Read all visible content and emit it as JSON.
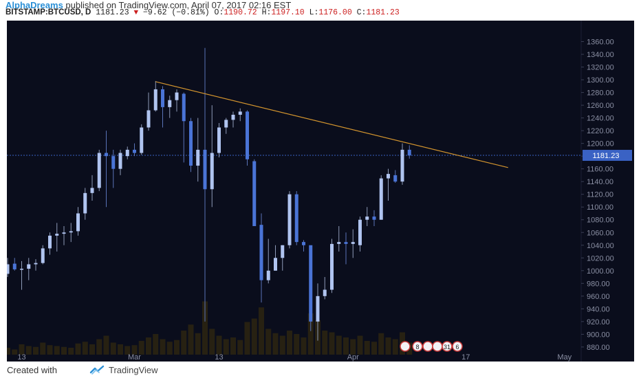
{
  "header": {
    "author": "AlphaDreams",
    "published_text": " published on TradingView.com, April 07, 2017 02:16 EST",
    "symbol": "BITSTAMP:BTCUSD, D",
    "last": "1181.23",
    "change": "−9.62 (−0.81%)",
    "open_label": "O:",
    "open_value": "1190.72",
    "high_label": "H:",
    "high_value": "1197.10",
    "low_label": "L:",
    "low_value": "1176.00",
    "close_label": "C:",
    "close_value": "1181.23"
  },
  "footer": {
    "created_with": "Created with",
    "brand": "TradingView"
  },
  "colors": {
    "background": "#0a0d1c",
    "bull": "#b0c4f0",
    "bear": "#4a74d6",
    "trendline": "#d4952e",
    "price_line": "#3a62c4",
    "axis_text": "#8a8fa3",
    "volume": "#2a2412"
  },
  "chart_data": {
    "type": "candlestick",
    "title": "BITSTAMP:BTCUSD, D",
    "ylim": [
      868,
      1380
    ],
    "ytick_values": [
      880,
      900,
      920,
      940,
      960,
      980,
      1000,
      1020,
      1040,
      1060,
      1080,
      1100,
      1120,
      1140,
      1160,
      1180,
      1200,
      1220,
      1240,
      1260,
      1280,
      1300,
      1320,
      1340,
      1360
    ],
    "ytick_labels": [
      "880.00",
      "900.00",
      "920.00",
      "940.00",
      "960.00",
      "980.00",
      "1000.00",
      "1020.00",
      "1040.00",
      "1060.00",
      "1080.00",
      "1100.00",
      "1120.00",
      "1140.00",
      "1160.00",
      "1180.00",
      "1200.00",
      "1220.00",
      "1240.00",
      "1260.00",
      "1280.00",
      "1300.00",
      "1320.00",
      "1340.00",
      "1360.00"
    ],
    "xtick_labels": [
      {
        "label": "13",
        "index": 2
      },
      {
        "label": "Mar",
        "index": 18
      },
      {
        "label": "13",
        "index": 30
      },
      {
        "label": "Apr",
        "index": 49
      },
      {
        "label": "17",
        "index": 65
      },
      {
        "label": "May",
        "index": 79
      }
    ],
    "last_price": 1181.23,
    "last_price_label": "1181.23",
    "candles": [
      {
        "o": 995,
        "h": 1020,
        "l": 990,
        "c": 1010
      },
      {
        "o": 1011,
        "h": 1020,
        "l": 1000,
        "c": 1002
      },
      {
        "o": 1002,
        "h": 1015,
        "l": 970,
        "c": 1003
      },
      {
        "o": 1003,
        "h": 1020,
        "l": 985,
        "c": 1010
      },
      {
        "o": 1010,
        "h": 1018,
        "l": 1000,
        "c": 1012
      },
      {
        "o": 1012,
        "h": 1040,
        "l": 1010,
        "c": 1035
      },
      {
        "o": 1035,
        "h": 1060,
        "l": 1025,
        "c": 1055
      },
      {
        "o": 1055,
        "h": 1075,
        "l": 1030,
        "c": 1058
      },
      {
        "o": 1058,
        "h": 1070,
        "l": 1040,
        "c": 1060
      },
      {
        "o": 1060,
        "h": 1075,
        "l": 1045,
        "c": 1062
      },
      {
        "o": 1062,
        "h": 1100,
        "l": 1055,
        "c": 1090
      },
      {
        "o": 1090,
        "h": 1130,
        "l": 1080,
        "c": 1122
      },
      {
        "o": 1122,
        "h": 1150,
        "l": 1110,
        "c": 1130
      },
      {
        "o": 1130,
        "h": 1190,
        "l": 1125,
        "c": 1185
      },
      {
        "o": 1185,
        "h": 1220,
        "l": 1100,
        "c": 1180
      },
      {
        "o": 1180,
        "h": 1190,
        "l": 1130,
        "c": 1160
      },
      {
        "o": 1160,
        "h": 1190,
        "l": 1150,
        "c": 1185
      },
      {
        "o": 1180,
        "h": 1195,
        "l": 1175,
        "c": 1190
      },
      {
        "o": 1190,
        "h": 1200,
        "l": 1180,
        "c": 1185
      },
      {
        "o": 1185,
        "h": 1230,
        "l": 1182,
        "c": 1225
      },
      {
        "o": 1225,
        "h": 1280,
        "l": 1220,
        "c": 1252
      },
      {
        "o": 1252,
        "h": 1298,
        "l": 1250,
        "c": 1285
      },
      {
        "o": 1285,
        "h": 1290,
        "l": 1225,
        "c": 1257
      },
      {
        "o": 1257,
        "h": 1275,
        "l": 1240,
        "c": 1268
      },
      {
        "o": 1268,
        "h": 1285,
        "l": 1250,
        "c": 1280
      },
      {
        "o": 1278,
        "h": 1280,
        "l": 1170,
        "c": 1235
      },
      {
        "o": 1235,
        "h": 1240,
        "l": 1155,
        "c": 1165
      },
      {
        "o": 1165,
        "h": 1240,
        "l": 1140,
        "c": 1190
      },
      {
        "o": 1190,
        "h": 1350,
        "l": 920,
        "c": 1128
      },
      {
        "o": 1128,
        "h": 1260,
        "l": 1100,
        "c": 1185
      },
      {
        "o": 1185,
        "h": 1232,
        "l": 1178,
        "c": 1225
      },
      {
        "o": 1225,
        "h": 1240,
        "l": 1215,
        "c": 1237
      },
      {
        "o": 1237,
        "h": 1250,
        "l": 1225,
        "c": 1245
      },
      {
        "o": 1245,
        "h": 1255,
        "l": 1235,
        "c": 1250
      },
      {
        "o": 1250,
        "h": 1252,
        "l": 1165,
        "c": 1175
      },
      {
        "o": 1172,
        "h": 1175,
        "l": 1075,
        "c": 1070
      },
      {
        "o": 1072,
        "h": 1090,
        "l": 950,
        "c": 985
      },
      {
        "o": 985,
        "h": 1050,
        "l": 980,
        "c": 1000
      },
      {
        "o": 1000,
        "h": 1040,
        "l": 1000,
        "c": 1020
      },
      {
        "o": 1020,
        "h": 1040,
        "l": 1000,
        "c": 1040
      },
      {
        "o": 1040,
        "h": 1125,
        "l": 1035,
        "c": 1120
      },
      {
        "o": 1120,
        "h": 1125,
        "l": 1040,
        "c": 1045
      },
      {
        "o": 1045,
        "h": 1048,
        "l": 1030,
        "c": 1040
      },
      {
        "o": 1040,
        "h": 1038,
        "l": 905,
        "c": 920
      },
      {
        "o": 920,
        "h": 980,
        "l": 890,
        "c": 960
      },
      {
        "o": 960,
        "h": 990,
        "l": 955,
        "c": 970
      },
      {
        "o": 970,
        "h": 1050,
        "l": 965,
        "c": 1042
      },
      {
        "o": 1042,
        "h": 1070,
        "l": 1030,
        "c": 1045
      },
      {
        "o": 1045,
        "h": 1060,
        "l": 1010,
        "c": 1042
      },
      {
        "o": 1042,
        "h": 1065,
        "l": 1020,
        "c": 1045
      },
      {
        "o": 1040,
        "h": 1085,
        "l": 1030,
        "c": 1080
      },
      {
        "o": 1080,
        "h": 1100,
        "l": 1070,
        "c": 1085
      },
      {
        "o": 1085,
        "h": 1095,
        "l": 1070,
        "c": 1080
      },
      {
        "o": 1080,
        "h": 1150,
        "l": 1080,
        "c": 1145
      },
      {
        "o": 1145,
        "h": 1160,
        "l": 1110,
        "c": 1152
      },
      {
        "o": 1150,
        "h": 1158,
        "l": 1138,
        "c": 1140
      },
      {
        "o": 1140,
        "h": 1200,
        "l": 1135,
        "c": 1190
      },
      {
        "o": 1190,
        "h": 1197,
        "l": 1176,
        "c": 1181
      }
    ],
    "volumes": [
      8,
      6,
      12,
      10,
      9,
      14,
      11,
      10,
      9,
      8,
      13,
      15,
      12,
      18,
      22,
      14,
      12,
      10,
      11,
      16,
      20,
      24,
      18,
      15,
      17,
      28,
      35,
      25,
      62,
      30,
      22,
      18,
      20,
      17,
      38,
      42,
      55,
      30,
      25,
      22,
      28,
      24,
      20,
      48,
      40,
      28,
      26,
      22,
      20,
      18,
      22,
      16,
      15,
      25,
      20,
      18,
      26,
      14
    ],
    "trendline": {
      "start": {
        "index": 21,
        "price": 1297
      },
      "end": {
        "index": 71,
        "price": 1162
      }
    },
    "event_badges": [
      "8",
      "31",
      "6"
    ]
  }
}
